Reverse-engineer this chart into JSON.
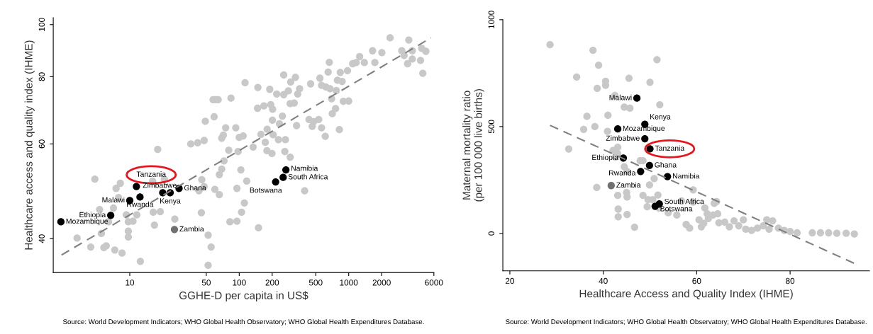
{
  "chart_data": [
    {
      "type": "scatter",
      "xlabel": "GGHE-D per capita in US$",
      "ylabel": "Healthcare access and quality index (IHME)",
      "log": "xy",
      "xlim": [
        2,
        6000
      ],
      "ylim": [
        34.6,
        103
      ],
      "xticks": [
        10,
        50,
        100,
        200,
        500,
        1000,
        2000,
        6000
      ],
      "yticks": [
        40,
        60,
        80,
        100
      ],
      "grid": false,
      "marker": "circle",
      "series": [
        {
          "color": "#c8c8c8",
          "x": [
            3.3,
            4.4,
            4.8,
            5.3,
            5.5,
            5.8,
            6.1,
            6.4,
            7.1,
            7.3,
            7.5,
            7.9,
            8.2,
            8.5,
            9.3,
            9.7,
            9.7,
            9.7,
            10.7,
            11.6,
            12.5,
            16.4,
            16.8,
            16.2,
            18.0,
            19.0,
            20.7,
            25.8,
            36.1,
            41.7,
            45.1,
            42.9,
            45.5,
            47.8,
            47.8,
            49.0,
            52.0,
            52.0,
            55.4,
            57.7,
            60.5,
            64.2,
            59.0,
            59.9,
            65.8,
            65.8,
            69.2,
            69.2,
            71.6,
            72.6,
            75.2,
            80.2,
            82.2,
            84.1,
            93.0,
            95.3,
            95.3,
            97.6,
            100,
            103.5,
            105,
            108.7,
            111.4,
            113,
            117,
            134,
            147,
            148,
            150,
            158,
            168,
            173,
            179,
            180,
            190,
            194,
            199,
            201,
            202,
            204,
            220,
            228,
            233,
            248,
            255,
            255,
            261,
            264,
            281,
            292,
            295,
            292,
            318,
            326,
            334,
            342,
            356,
            396,
            434,
            449,
            464,
            478,
            532,
            546,
            565,
            565,
            611,
            618,
            649,
            665,
            675,
            698,
            708,
            759,
            771,
            789,
            822,
            838,
            871,
            893,
            975,
            1000,
            1087,
            1170,
            1259,
            1390,
            1652,
            1734,
            2009,
            2388,
            3055,
            3206,
            3453,
            3540,
            3811,
            3811,
            4529,
            4645,
            4754,
            5070
          ],
          "values": [
            40.1,
            38.6,
            51.6,
            45.3,
            40.9,
            38.5,
            38.8,
            43.0,
            45.6,
            38.1,
            49.6,
            47.7,
            50.7,
            37.6,
            44.3,
            40.3,
            41.3,
            43.0,
            43.1,
            44.3,
            36.3,
            44.8,
            42.4,
            51.2,
            58.6,
            44.9,
            51.6,
            43.5,
            60.0,
            60.3,
            44.7,
            49.1,
            51.5,
            60.9,
            50.0,
            66.1,
            40.6,
            35.7,
            38.6,
            72.5,
            72.5,
            72.5,
            67.4,
            49.4,
            48.3,
            52.6,
            53.9,
            61.5,
            62.3,
            55.8,
            64.3,
            58.4,
            43.0,
            73.0,
            64.3,
            43.1,
            49.6,
            58.1,
            61.7,
            53.7,
            44.8,
            62.1,
            46.6,
            78.0,
            51.2,
            59.2,
            69.9,
            76.4,
            41.9,
            62.5,
            70.6,
            60.4,
            58.3,
            63.9,
            75.8,
            71.0,
            57.6,
            66.4,
            69.6,
            62.4,
            74.3,
            61.1,
            65.4,
            67.6,
            80.6,
            74.1,
            58.1,
            61.1,
            75.3,
            71.3,
            78.2,
            56.7,
            71.5,
            79.8,
            64.9,
            74.3,
            76.0,
            49.1,
            66.6,
            77.6,
            64.7,
            66.0,
            66.6,
            79.5,
            77.1,
            64.3,
            62.0,
            76.6,
            81.6,
            85.1,
            76.0,
            72.8,
            68.3,
            69.8,
            75.4,
            78.8,
            63.8,
            81.5,
            78.4,
            72.0,
            82.1,
            72.1,
            84.6,
            85.0,
            87.2,
            85.0,
            89.4,
            85.0,
            88.7,
            94.5,
            89.4,
            87.6,
            84.6,
            93.6,
            86.3,
            89.4,
            85.8,
            90.3,
            81.2,
            89.2
          ]
        },
        {
          "color": "#000000",
          "x": [
            11.5,
            2.35,
            6.7,
            10,
            12.4,
            20.0,
            23.4,
            28.2,
            267,
            252,
            215
          ],
          "values": [
            50.0,
            43.0,
            44.2,
            47.1,
            47.8,
            48.7,
            48.7,
            49.6,
            53.7,
            52.0,
            51.0
          ]
        },
        {
          "color": "#707070",
          "x": [
            25.6
          ],
          "values": [
            41.6
          ]
        },
        {
          "type": "line",
          "color": "#808080",
          "line_style": "dashed",
          "marker": "none",
          "x": [
            2.38,
            5650
          ],
          "values": [
            37.3,
            94.5
          ]
        }
      ],
      "annotations": [
        {
          "text": "Tanzania",
          "x": 11.5,
          "y": 50.0
        },
        {
          "text": "Mozambique",
          "x": 2.35,
          "y": 43.0
        },
        {
          "text": "Ethiopia",
          "x": 6.7,
          "y": 44.2
        },
        {
          "text": "Malawi",
          "x": 10,
          "y": 47.1
        },
        {
          "text": "Rwanda",
          "x": 12.4,
          "y": 47.8
        },
        {
          "text": "Zimbabwe",
          "x": 20.0,
          "y": 48.7
        },
        {
          "text": "Kenya",
          "x": 23.4,
          "y": 48.7
        },
        {
          "text": "Ghana",
          "x": 28.2,
          "y": 49.6
        },
        {
          "text": "Zambia",
          "x": 25.6,
          "y": 41.6
        },
        {
          "text": "Namibia",
          "x": 267,
          "y": 53.7
        },
        {
          "text": "South Africa",
          "x": 252,
          "y": 52.0
        },
        {
          "text": "Botswana",
          "x": 215,
          "y": 51.0
        },
        "Source: World Development Indicators; WHO Global Health Observatory; WHO Global Health Expenditures Database."
      ]
    },
    {
      "type": "scatter",
      "xlabel": "Healthcare Access and Quality Index (IHME)",
      "ylabel": "Maternal mortality ratio\n(per 100 000 live births)",
      "xlim": [
        18.5,
        97
      ],
      "ylim": [
        -175,
        1000
      ],
      "xticks": [
        20,
        40,
        60,
        80
      ],
      "yticks": [
        0,
        500,
        1000
      ],
      "grid": false,
      "marker": "circle",
      "series": [
        {
          "color": "#c8c8c8",
          "x": [
            28.6,
            37.8,
            39.0,
            34.3,
            40.5,
            40.5,
            38.7,
            45.5,
            42.5,
            50.0,
            51.5,
            44.5,
            45.7,
            36.5,
            41.0,
            35.8,
            38.2,
            40.9,
            32.6,
            42.1,
            43.1,
            43.1,
            42.6,
            47.9,
            48.5,
            44.5,
            45.1,
            50.9,
            38.6,
            43.1,
            45.0,
            45.1,
            48.5,
            49.9,
            49.6,
            50.6,
            51.7,
            51.9,
            49.4,
            43.2,
            43.2,
            45.1,
            46.7,
            52.1,
            55.75,
            53.9,
            56.75,
            59.25,
            61.75,
            62.25,
            63.75,
            64.5,
            64.25,
            57.75,
            58.5,
            60.5,
            61,
            61.5,
            62.5,
            63.5,
            64.75,
            66,
            67,
            68,
            69,
            70,
            70.5,
            71.75,
            73,
            74.25,
            75,
            76.25,
            75.5,
            77.5,
            78.75,
            80,
            81.5,
            84.75,
            86.5,
            88.25,
            90,
            92,
            93.75,
            59.25
          ],
          "values": [
            883,
            857,
            787,
            732,
            712,
            693,
            679,
            726,
            646,
            707,
            813,
            591,
            586,
            548,
            553,
            487,
            500,
            478,
            395,
            388,
            403,
            373,
            357,
            340,
            340,
            312,
            290,
            257,
            215,
            178,
            191,
            171,
            178,
            227,
            158,
            158,
            180,
            119,
            125,
            114,
            78,
            89,
            29,
            602,
            86,
            97,
            152,
            204,
            119,
            92,
            141,
            92,
            149,
            42,
            25,
            64,
            31,
            47,
            70,
            86,
            50,
            53,
            31,
            59,
            36,
            64,
            20,
            14,
            25,
            36,
            64,
            59,
            20,
            25,
            14,
            9,
            3,
            3,
            3,
            3,
            1,
            1,
            -2,
            147
          ]
        },
        {
          "color": "#000000",
          "x": [
            50.0,
            47.2,
            48.9,
            43.1,
            48.9,
            44.3,
            49.9,
            48.0,
            53.75,
            52.0,
            51.1
          ],
          "values": [
            396,
            633,
            511,
            489,
            443,
            353,
            318,
            290,
            266,
            138,
            127
          ]
        },
        {
          "color": "#707070",
          "x": [
            41.7
          ],
          "values": [
            224
          ]
        },
        {
          "type": "line",
          "color": "#808080",
          "line_style": "dashed",
          "marker": "none",
          "x": [
            28.6,
            93.75
          ],
          "values": [
            506,
            -140
          ]
        }
      ],
      "annotations": [
        {
          "text": "Tanzania",
          "x": 50.0,
          "y": 396
        },
        {
          "text": "Malawi",
          "x": 47.2,
          "y": 633
        },
        {
          "text": "Kenya",
          "x": 48.9,
          "y": 511
        },
        {
          "text": "Mozambique",
          "x": 43.1,
          "y": 489
        },
        {
          "text": "Zimbabwe",
          "x": 48.9,
          "y": 443
        },
        {
          "text": "Ethiopia",
          "x": 44.3,
          "y": 353
        },
        {
          "text": "Ghana",
          "x": 49.9,
          "y": 318
        },
        {
          "text": "Rwanda",
          "x": 48.0,
          "y": 290
        },
        {
          "text": "Namibia",
          "x": 53.75,
          "y": 266
        },
        {
          "text": "Zambia",
          "x": 41.7,
          "y": 224
        },
        {
          "text": "South Africa",
          "x": 52.0,
          "y": 138
        },
        {
          "text": "Botswana",
          "x": 51.1,
          "y": 127
        },
        "Source: World Development Indicators; WHO Global Health Observatory; WHO Global Health Expenditures Database."
      ]
    }
  ]
}
